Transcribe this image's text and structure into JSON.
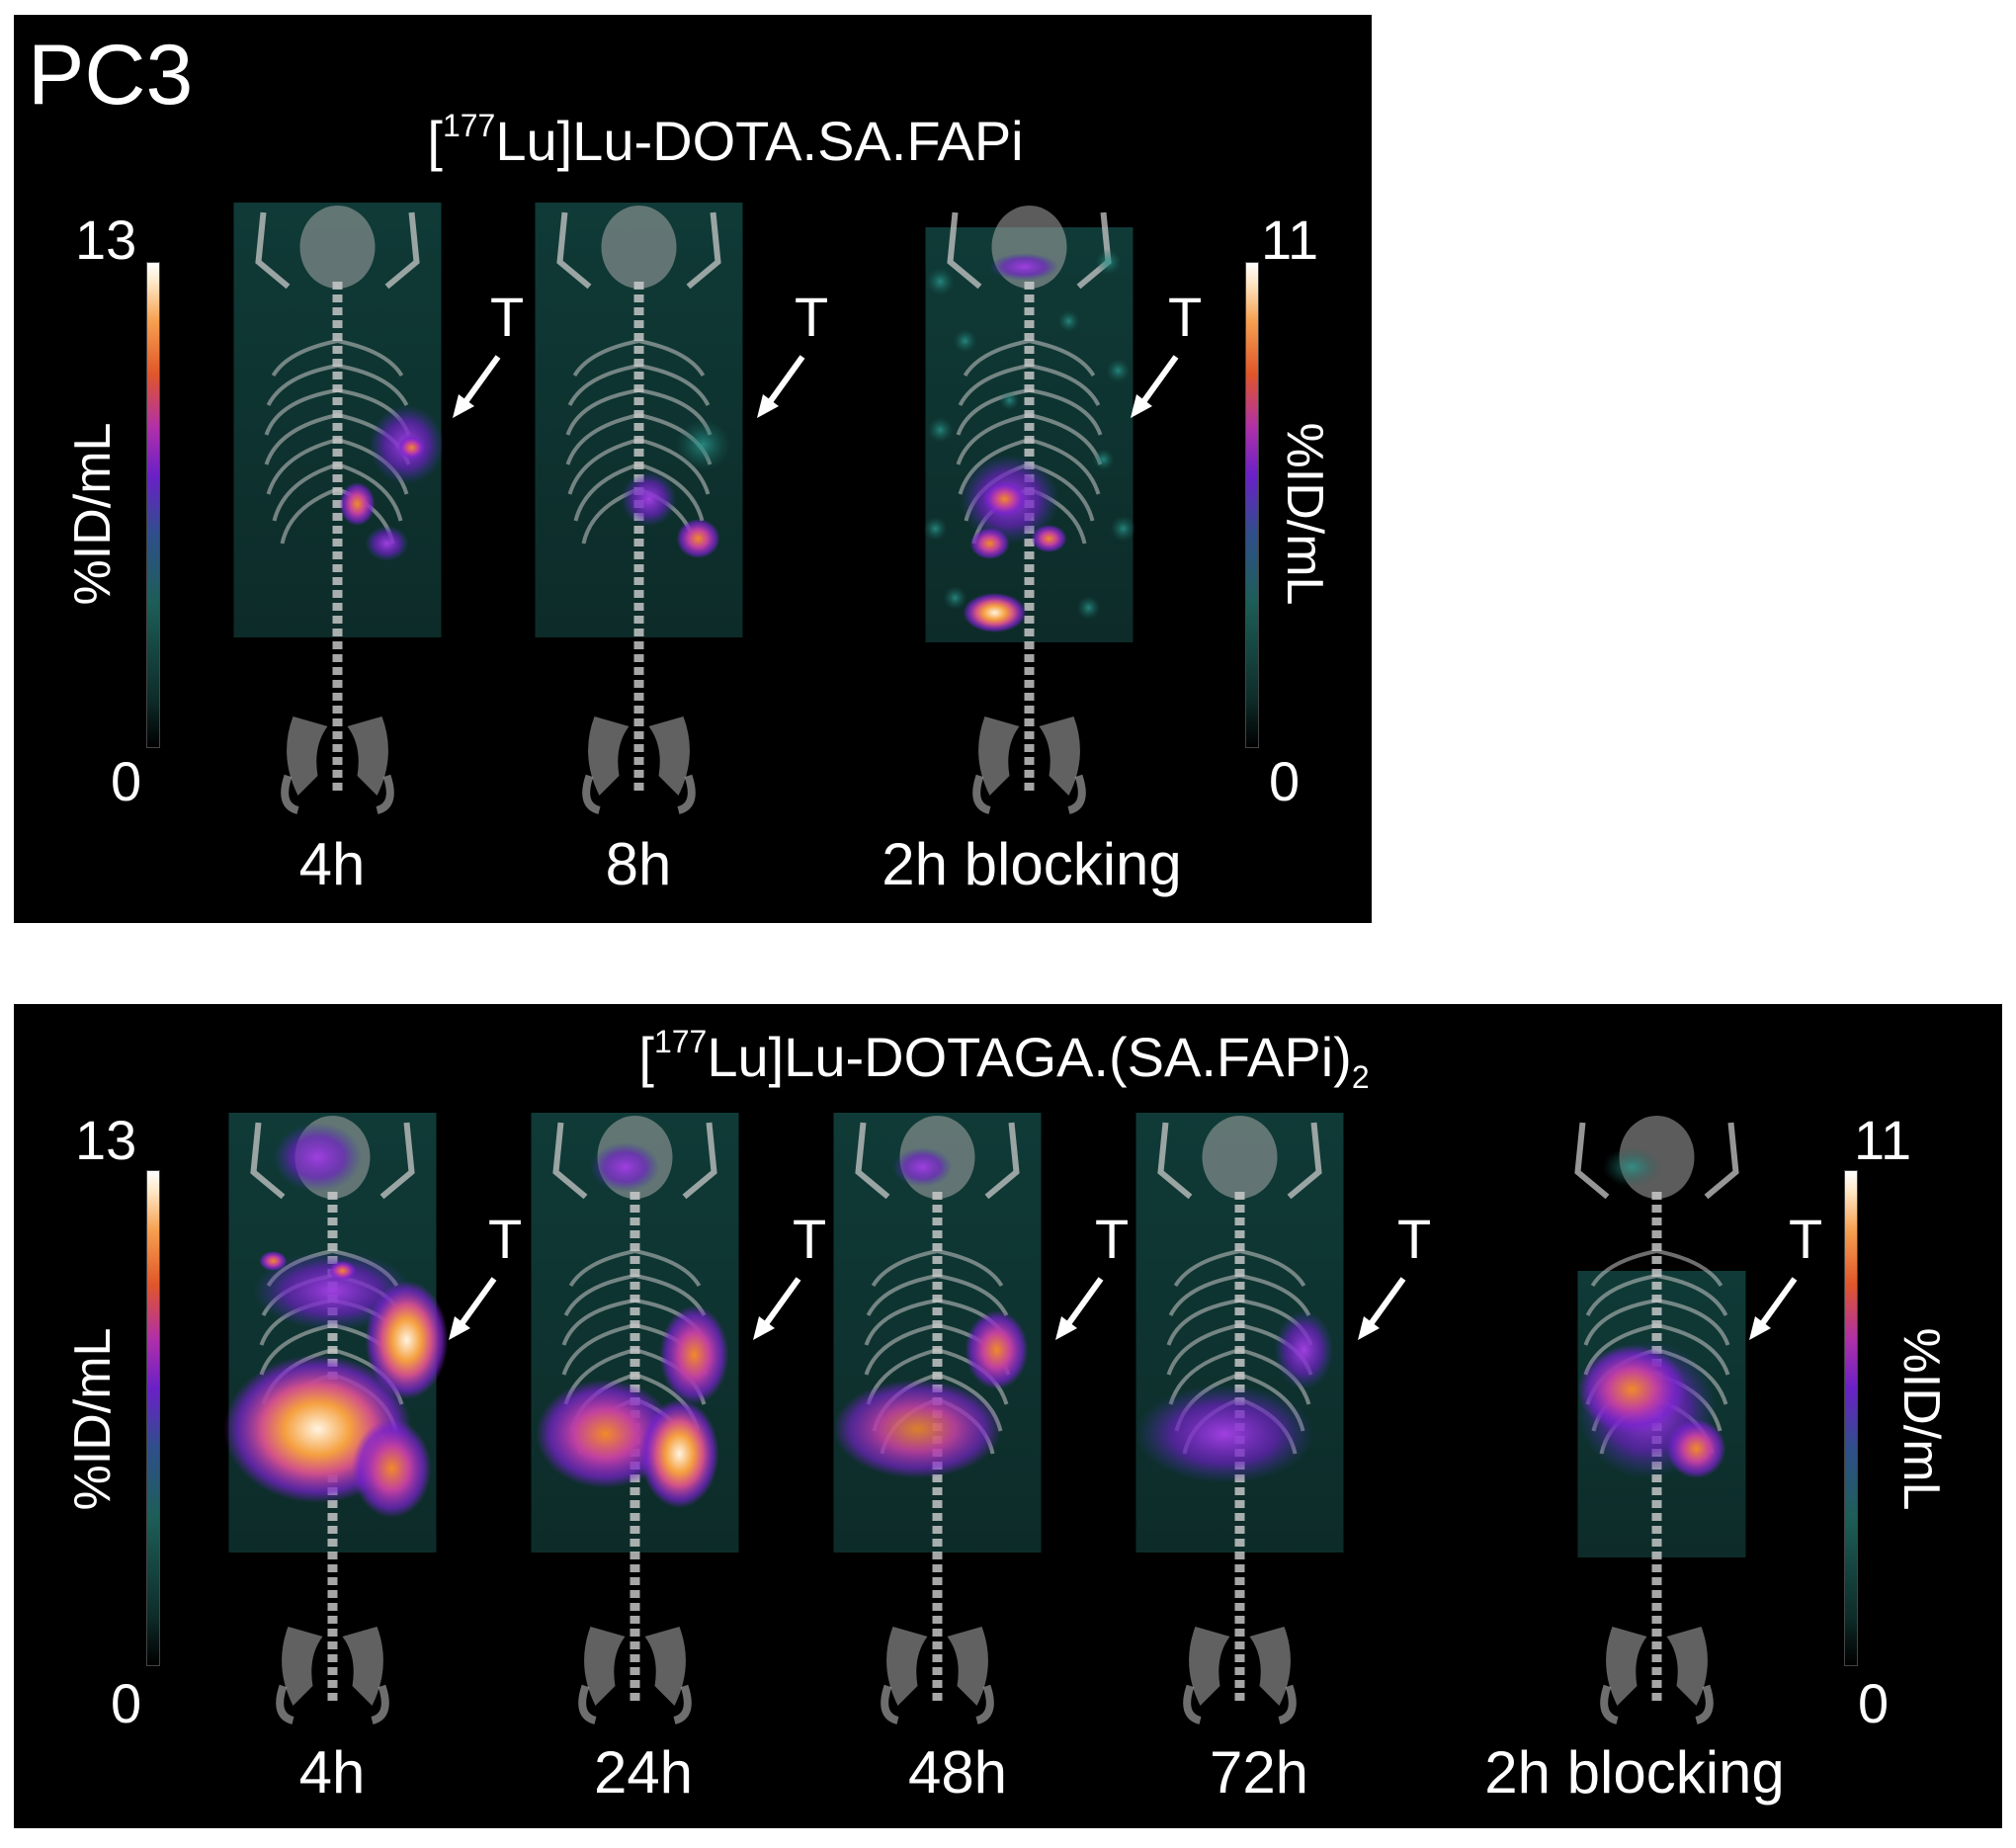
{
  "top": {
    "panel_label": "PC3",
    "compound": {
      "prefix": "[",
      "isotope": "177",
      "rest": "Lu]Lu-DOTA.SA.FAPi"
    },
    "left_scale": {
      "max": "13",
      "min": "0",
      "unit": "%ID/mL"
    },
    "right_scale": {
      "max": "11",
      "min": "0",
      "unit": "%ID/mL"
    },
    "timepoints": [
      "4h",
      "8h",
      "2h blocking"
    ],
    "tumor_marker": "T"
  },
  "bottom": {
    "compound": {
      "prefix": "[",
      "isotope": "177",
      "rest": "Lu]Lu-DOTAGA.(SA.FAPi)",
      "subscript": "2"
    },
    "left_scale": {
      "max": "13",
      "min": "0",
      "unit": "%ID/mL"
    },
    "right_scale": {
      "max": "11",
      "min": "0",
      "unit": "%ID/mL"
    },
    "timepoints": [
      "4h",
      "24h",
      "48h",
      "72h",
      "2h blocking"
    ],
    "tumor_marker": "T"
  },
  "colors": {
    "background": "#000000",
    "text": "#ffffff",
    "overlay_low": "#1d6e66",
    "overlay_mid": "#7a22d0",
    "overlay_high": "#f08a2a",
    "overlay_peak": "#fff4e0"
  }
}
